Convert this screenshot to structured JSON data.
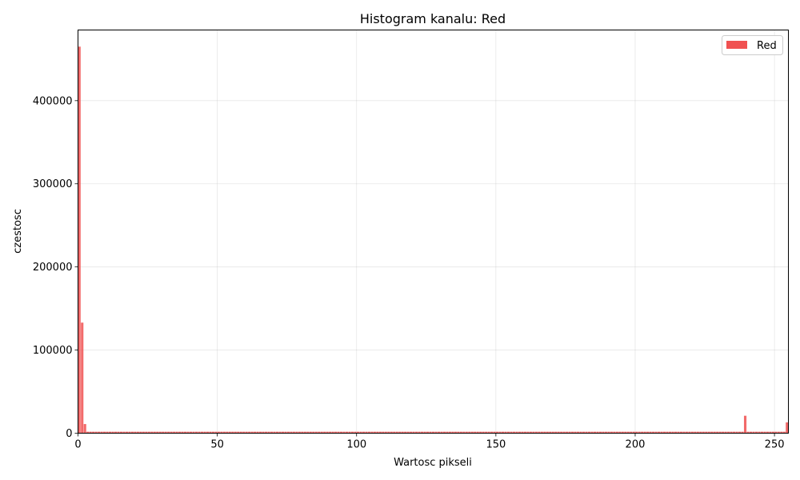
{
  "chart_data": {
    "type": "bar",
    "title": "Histogram kanalu: Red",
    "xlabel": "Wartosc pikseli",
    "ylabel": "czestosc",
    "xlim": [
      0,
      255
    ],
    "ylim": [
      0,
      485000
    ],
    "xticks": [
      0,
      50,
      100,
      150,
      200,
      250
    ],
    "yticks": [
      0,
      100000,
      200000,
      300000,
      400000
    ],
    "grid": true,
    "legend": "top-right",
    "color": "#f05050",
    "series": [
      {
        "name": "Red",
        "bins": [
          {
            "x": 0,
            "value": 465000
          },
          {
            "x": 1,
            "value": 133000
          },
          {
            "x": 2,
            "value": 11000
          },
          {
            "x": 239,
            "value": 21000
          },
          {
            "x": 254,
            "value": 13000
          }
        ],
        "baseline_value": 1800
      }
    ]
  }
}
